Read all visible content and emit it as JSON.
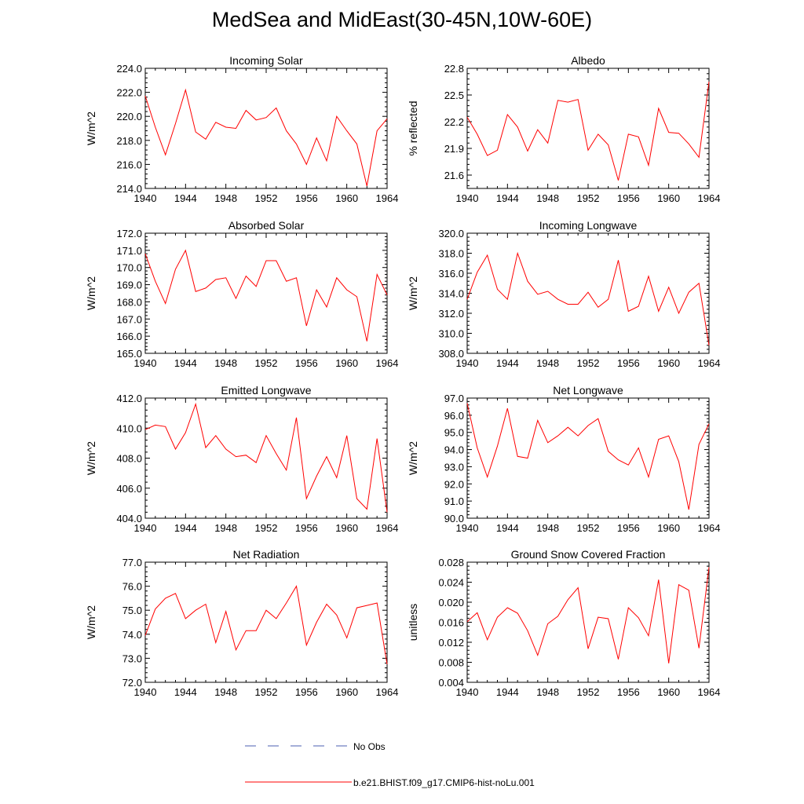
{
  "title": "MedSea and MidEast(30-45N,10W-60E)",
  "colors": {
    "model": "#ff0000",
    "obs": "#4b5fb0",
    "axis": "#000000"
  },
  "legend": {
    "obs_label": "No Obs",
    "model_label": "b.e21.BHIST.f09_g17.CMIP6-hist-noLu.001"
  },
  "chart_data": [
    {
      "type": "line",
      "title": "Incoming Solar",
      "xlabel": "",
      "ylabel": "W/m^2",
      "xlim": [
        1940,
        1964
      ],
      "ylim": [
        214,
        224
      ],
      "yticks": [
        214,
        216,
        218,
        220,
        222,
        224
      ],
      "ydecimals": 1,
      "xticks": [
        1940,
        1944,
        1948,
        1952,
        1956,
        1960,
        1964
      ],
      "x": [
        1940,
        1941,
        1942,
        1943,
        1944,
        1945,
        1946,
        1947,
        1948,
        1949,
        1950,
        1951,
        1952,
        1953,
        1954,
        1955,
        1956,
        1957,
        1958,
        1959,
        1960,
        1961,
        1962,
        1963,
        1964
      ],
      "series": [
        {
          "name": "b.e21.BHIST.f09_g17.CMIP6-hist-noLu.001",
          "values": [
            221.7,
            219.1,
            216.8,
            219.4,
            222.2,
            218.7,
            218.1,
            219.5,
            219.1,
            219.0,
            220.5,
            219.7,
            219.9,
            220.7,
            218.8,
            217.7,
            216.0,
            218.2,
            216.3,
            220.0,
            218.8,
            217.7,
            214.2,
            218.8,
            219.8
          ]
        }
      ]
    },
    {
      "type": "line",
      "title": "Albedo",
      "xlabel": "",
      "ylabel": "% reflected",
      "xlim": [
        1940,
        1964
      ],
      "ylim": [
        21.45,
        22.8
      ],
      "yticks": [
        21.6,
        21.9,
        22.2,
        22.5,
        22.8
      ],
      "ydecimals": 1,
      "xticks": [
        1940,
        1944,
        1948,
        1952,
        1956,
        1960,
        1964
      ],
      "x": [
        1940,
        1941,
        1942,
        1943,
        1944,
        1945,
        1946,
        1947,
        1948,
        1949,
        1950,
        1951,
        1952,
        1953,
        1954,
        1955,
        1956,
        1957,
        1958,
        1959,
        1960,
        1961,
        1962,
        1963,
        1964
      ],
      "series": [
        {
          "name": "b.e21.BHIST.f09_g17.CMIP6-hist-noLu.001",
          "values": [
            22.25,
            22.06,
            21.82,
            21.88,
            22.28,
            22.14,
            21.87,
            22.11,
            21.96,
            22.44,
            22.42,
            22.45,
            21.88,
            22.06,
            21.94,
            21.54,
            22.06,
            22.03,
            21.71,
            22.35,
            22.08,
            22.07,
            21.95,
            21.8,
            22.65
          ]
        }
      ]
    },
    {
      "type": "line",
      "title": "Absorbed Solar",
      "xlabel": "",
      "ylabel": "W/m^2",
      "xlim": [
        1940,
        1964
      ],
      "ylim": [
        165,
        172
      ],
      "yticks": [
        165,
        166,
        167,
        168,
        169,
        170,
        171,
        172
      ],
      "ydecimals": 1,
      "xticks": [
        1940,
        1944,
        1948,
        1952,
        1956,
        1960,
        1964
      ],
      "x": [
        1940,
        1941,
        1942,
        1943,
        1944,
        1945,
        1946,
        1947,
        1948,
        1949,
        1950,
        1951,
        1952,
        1953,
        1954,
        1955,
        1956,
        1957,
        1958,
        1959,
        1960,
        1961,
        1962,
        1963,
        1964
      ],
      "series": [
        {
          "name": "b.e21.BHIST.f09_g17.CMIP6-hist-noLu.001",
          "values": [
            170.8,
            169.2,
            167.9,
            169.9,
            171.0,
            168.6,
            168.8,
            169.3,
            169.4,
            168.2,
            169.5,
            168.9,
            170.4,
            170.4,
            169.2,
            169.4,
            166.6,
            168.7,
            167.7,
            169.4,
            168.7,
            168.3,
            165.7,
            169.6,
            168.4
          ]
        }
      ]
    },
    {
      "type": "line",
      "title": "Incoming Longwave",
      "xlabel": "",
      "ylabel": "W/m^2",
      "xlim": [
        1940,
        1964
      ],
      "ylim": [
        308,
        320
      ],
      "yticks": [
        308,
        310,
        312,
        314,
        316,
        318,
        320
      ],
      "ydecimals": 1,
      "xticks": [
        1940,
        1944,
        1948,
        1952,
        1956,
        1960,
        1964
      ],
      "x": [
        1940,
        1941,
        1942,
        1943,
        1944,
        1945,
        1946,
        1947,
        1948,
        1949,
        1950,
        1951,
        1952,
        1953,
        1954,
        1955,
        1956,
        1957,
        1958,
        1959,
        1960,
        1961,
        1962,
        1963,
        1964
      ],
      "series": [
        {
          "name": "b.e21.BHIST.f09_g17.CMIP6-hist-noLu.001",
          "values": [
            313.4,
            316.1,
            317.8,
            314.4,
            313.4,
            318.0,
            315.2,
            313.9,
            314.2,
            313.4,
            312.9,
            312.9,
            314.1,
            312.6,
            313.4,
            317.3,
            312.2,
            312.7,
            315.7,
            312.2,
            314.6,
            312.0,
            314.1,
            315.0,
            308.8
          ]
        }
      ]
    },
    {
      "type": "line",
      "title": "Emitted Longwave",
      "xlabel": "",
      "ylabel": "W/m^2",
      "xlim": [
        1940,
        1964
      ],
      "ylim": [
        404,
        412
      ],
      "yticks": [
        404,
        406,
        408,
        410,
        412
      ],
      "ydecimals": 1,
      "xticks": [
        1940,
        1944,
        1948,
        1952,
        1956,
        1960,
        1964
      ],
      "x": [
        1940,
        1941,
        1942,
        1943,
        1944,
        1945,
        1946,
        1947,
        1948,
        1949,
        1950,
        1951,
        1952,
        1953,
        1954,
        1955,
        1956,
        1957,
        1958,
        1959,
        1960,
        1961,
        1962,
        1963,
        1964
      ],
      "series": [
        {
          "name": "b.e21.BHIST.f09_g17.CMIP6-hist-noLu.001",
          "values": [
            409.9,
            410.2,
            410.1,
            408.6,
            409.7,
            411.6,
            408.7,
            409.5,
            408.6,
            408.1,
            408.2,
            407.7,
            409.5,
            408.3,
            407.2,
            410.7,
            405.3,
            406.8,
            408.1,
            406.7,
            409.5,
            405.3,
            404.6,
            409.3,
            404.4
          ]
        }
      ]
    },
    {
      "type": "line",
      "title": "Net Longwave",
      "xlabel": "",
      "ylabel": "W/m^2",
      "xlim": [
        1940,
        1964
      ],
      "ylim": [
        90,
        97
      ],
      "yticks": [
        90,
        91,
        92,
        93,
        94,
        95,
        96,
        97
      ],
      "ydecimals": 1,
      "xticks": [
        1940,
        1944,
        1948,
        1952,
        1956,
        1960,
        1964
      ],
      "x": [
        1940,
        1941,
        1942,
        1943,
        1944,
        1945,
        1946,
        1947,
        1948,
        1949,
        1950,
        1951,
        1952,
        1953,
        1954,
        1955,
        1956,
        1957,
        1958,
        1959,
        1960,
        1961,
        1962,
        1963,
        1964
      ],
      "series": [
        {
          "name": "b.e21.BHIST.f09_g17.CMIP6-hist-noLu.001",
          "values": [
            96.7,
            94.1,
            92.4,
            94.2,
            96.4,
            93.6,
            93.5,
            95.7,
            94.4,
            94.8,
            95.3,
            94.8,
            95.4,
            95.8,
            93.9,
            93.4,
            93.1,
            94.1,
            92.4,
            94.6,
            94.8,
            93.3,
            90.5,
            94.3,
            95.5
          ]
        }
      ]
    },
    {
      "type": "line",
      "title": "Net Radiation",
      "xlabel": "",
      "ylabel": "W/m^2",
      "xlim": [
        1940,
        1964
      ],
      "ylim": [
        72,
        77
      ],
      "yticks": [
        72,
        73,
        74,
        75,
        76,
        77
      ],
      "ydecimals": 1,
      "xticks": [
        1940,
        1944,
        1948,
        1952,
        1956,
        1960,
        1964
      ],
      "x": [
        1940,
        1941,
        1942,
        1943,
        1944,
        1945,
        1946,
        1947,
        1948,
        1949,
        1950,
        1951,
        1952,
        1953,
        1954,
        1955,
        1956,
        1957,
        1958,
        1959,
        1960,
        1961,
        1962,
        1963,
        1964
      ],
      "series": [
        {
          "name": "b.e21.BHIST.f09_g17.CMIP6-hist-noLu.001",
          "values": [
            73.95,
            75.05,
            75.5,
            75.7,
            74.65,
            75.0,
            75.25,
            73.65,
            74.95,
            73.35,
            74.15,
            74.15,
            75.0,
            74.65,
            75.3,
            76.0,
            73.55,
            74.5,
            75.25,
            74.8,
            73.85,
            75.1,
            75.2,
            75.3,
            72.75
          ]
        }
      ]
    },
    {
      "type": "line",
      "title": "Ground Snow Covered Fraction",
      "xlabel": "",
      "ylabel": "unitless",
      "xlim": [
        1940,
        1964
      ],
      "ylim": [
        0.004,
        0.028
      ],
      "yticks": [
        0.004,
        0.008,
        0.012,
        0.016,
        0.02,
        0.024,
        0.028
      ],
      "ydecimals": 3,
      "xticks": [
        1940,
        1944,
        1948,
        1952,
        1956,
        1960,
        1964
      ],
      "x": [
        1940,
        1941,
        1942,
        1943,
        1944,
        1945,
        1946,
        1947,
        1948,
        1949,
        1950,
        1951,
        1952,
        1953,
        1954,
        1955,
        1956,
        1957,
        1958,
        1959,
        1960,
        1961,
        1962,
        1963,
        1964
      ],
      "series": [
        {
          "name": "b.e21.BHIST.f09_g17.CMIP6-hist-noLu.001",
          "values": [
            0.0161,
            0.0179,
            0.0125,
            0.017,
            0.0189,
            0.0178,
            0.0143,
            0.0094,
            0.0157,
            0.0172,
            0.0205,
            0.0229,
            0.0107,
            0.017,
            0.0167,
            0.0086,
            0.0189,
            0.0169,
            0.0133,
            0.0245,
            0.0078,
            0.0235,
            0.0224,
            0.0108,
            0.027
          ]
        }
      ]
    }
  ]
}
